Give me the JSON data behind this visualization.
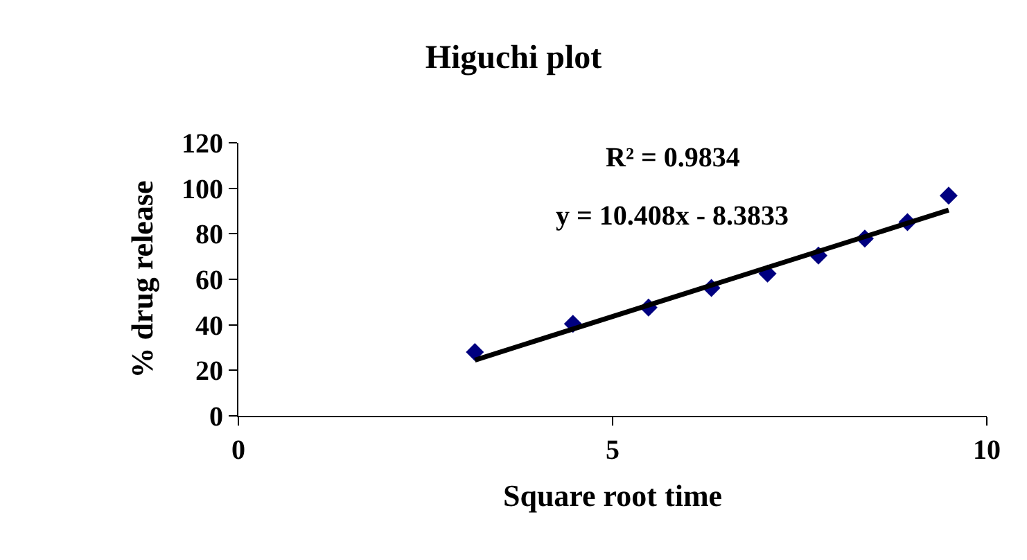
{
  "chart_data": {
    "type": "scatter",
    "title": "Higuchi plot",
    "xlabel": "Square root time",
    "ylabel": "% drug release",
    "annotations": [
      "R² = 0.9834",
      "y = 10.408x - 8.3833"
    ],
    "series": [
      {
        "color": "#000080",
        "marker": "diamond",
        "x": [
          3.16,
          4.47,
          5.48,
          6.32,
          7.07,
          7.75,
          8.37,
          8.94,
          9.49
        ],
        "values": [
          28.0,
          40.4,
          47.6,
          56.2,
          62.5,
          70.4,
          77.9,
          85.1,
          96.8
        ]
      },
      {
        "type": "line",
        "color": "#000000",
        "marker": "none",
        "line_style": "solid",
        "x": [
          3.16,
          9.49
        ],
        "values": [
          24.5,
          90.4
        ]
      }
    ],
    "xlim": [
      0,
      10
    ],
    "ylim": [
      0,
      120
    ],
    "xticks": [
      0,
      5,
      10
    ],
    "yticks": [
      0,
      20,
      40,
      60,
      80,
      100,
      120
    ],
    "grid": false
  }
}
